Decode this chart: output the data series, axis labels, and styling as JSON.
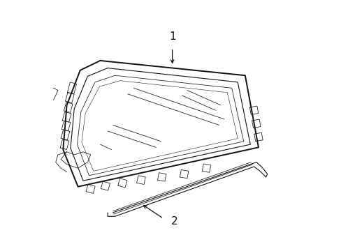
{
  "background_color": "#ffffff",
  "line_color": "#111111",
  "lw_outer": 1.4,
  "lw_inner": 0.8,
  "lw_thin": 0.55,
  "label1": "1",
  "label2": "2",
  "figsize": [
    4.89,
    3.6
  ],
  "dpi": 100
}
